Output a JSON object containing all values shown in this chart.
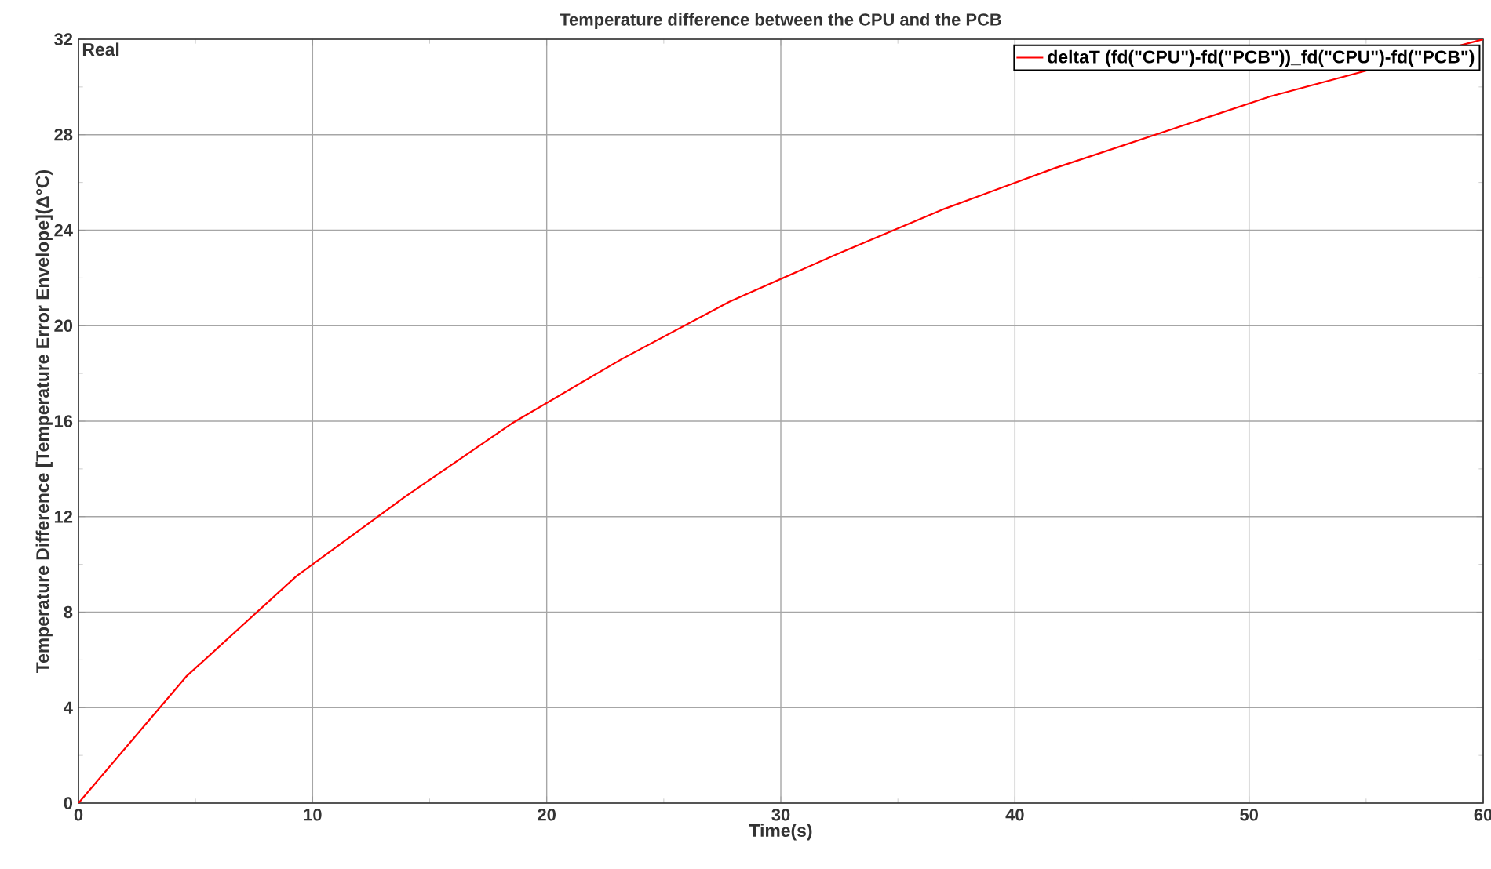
{
  "chart_data": {
    "type": "line",
    "title": "Temperature difference between the CPU and the PCB",
    "xlabel": "Time(s)",
    "ylabel": "Temperature Difference [Temperature Error Envelope](Δ°C)",
    "annotations": [
      "Real"
    ],
    "xlim": [
      0,
      60
    ],
    "ylim": [
      0,
      32
    ],
    "xticks": [
      0,
      10,
      20,
      30,
      40,
      50,
      60
    ],
    "yticks": [
      0,
      4,
      8,
      12,
      16,
      20,
      24,
      28,
      32
    ],
    "grid": true,
    "legend": "top right",
    "series": [
      {
        "name": "deltaT (fd(\"CPU\")-fd(\"PCB\"))_fd(\"CPU\")-fd(\"PCB\")",
        "color": "#ff0000",
        "x": [
          0,
          4.6,
          9.3,
          13.9,
          18.5,
          23.2,
          27.8,
          32.4,
          37.0,
          41.7,
          46.3,
          50.9,
          60
        ],
        "values": [
          0,
          5.3,
          9.5,
          12.8,
          15.9,
          18.6,
          21.0,
          23.0,
          24.9,
          26.6,
          28.1,
          29.6,
          32
        ]
      }
    ]
  }
}
